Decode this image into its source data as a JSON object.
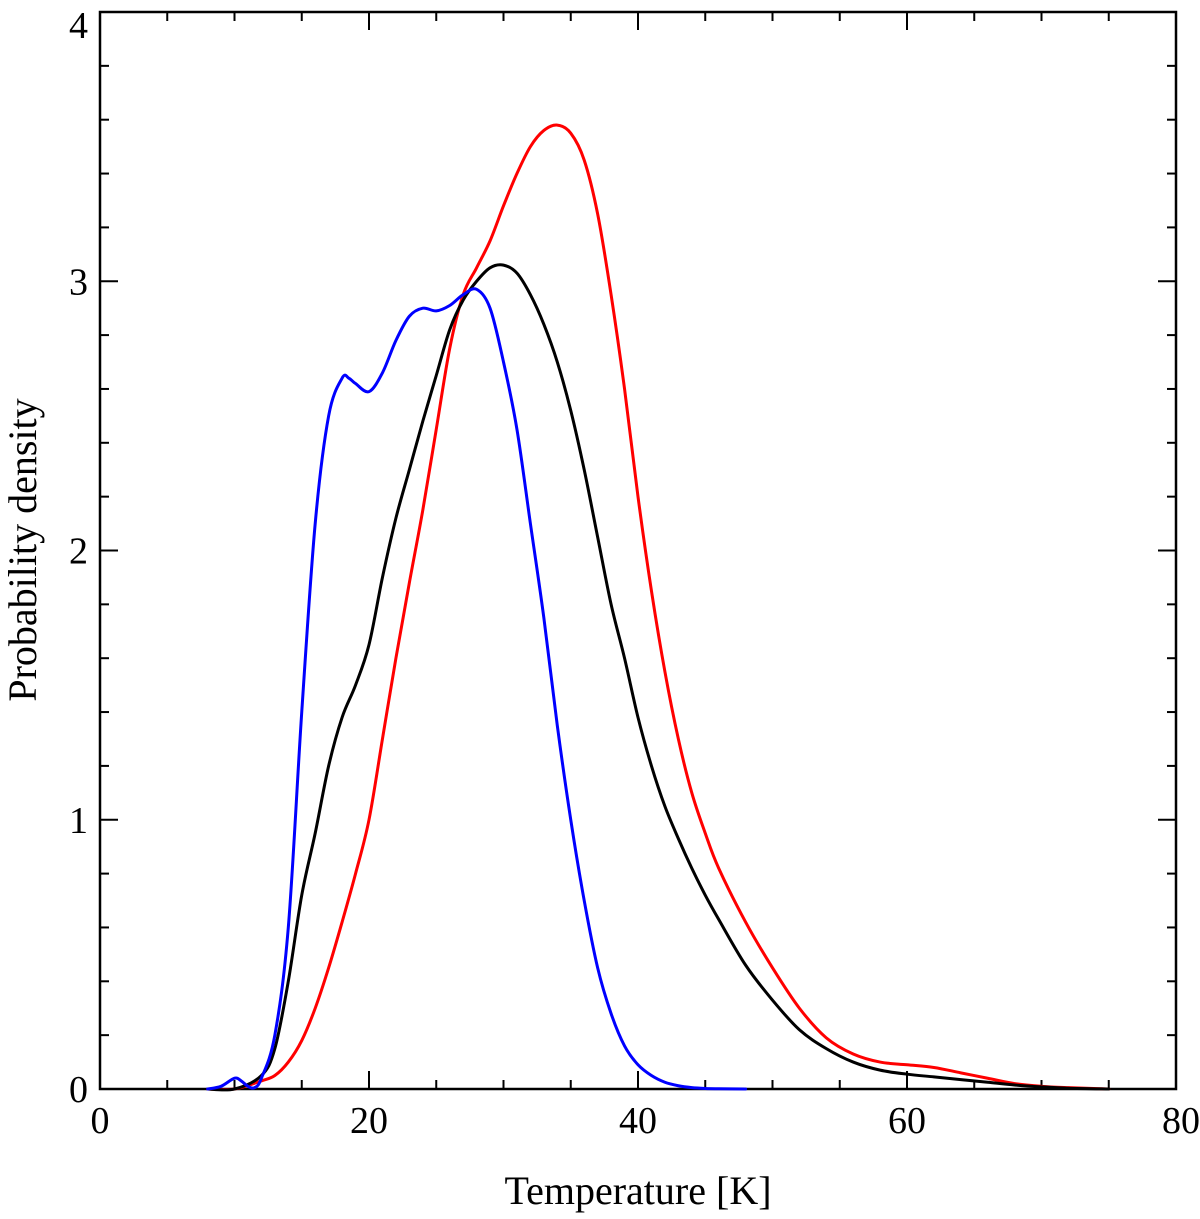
{
  "chart_data": {
    "type": "line",
    "title": "",
    "xlabel": "Temperature [K]",
    "ylabel": "Probability density",
    "xlim": [
      0,
      80
    ],
    "ylim": [
      0,
      4
    ],
    "x_major_ticks": [
      0,
      20,
      40,
      60,
      80
    ],
    "x_minor_step": 5,
    "y_major_ticks": [
      0,
      1,
      2,
      3,
      4
    ],
    "y_minor_step": 0.2,
    "grid": false,
    "legend": "none",
    "series": [
      {
        "name": "red curve",
        "color": "#ff0000",
        "x": [
          8,
          10,
          12,
          13,
          14,
          15,
          16,
          17,
          18,
          19,
          20,
          21,
          22,
          23,
          24,
          25,
          26,
          27,
          28,
          29,
          30,
          31,
          32,
          33,
          34,
          35,
          36,
          37,
          38,
          39,
          40,
          41,
          42,
          43,
          44,
          45,
          46,
          48,
          50,
          52,
          54,
          56,
          58,
          60,
          62,
          64,
          66,
          68,
          70,
          72,
          75
        ],
        "y": [
          0,
          0,
          0.03,
          0.05,
          0.1,
          0.18,
          0.3,
          0.45,
          0.62,
          0.8,
          1.0,
          1.3,
          1.6,
          1.88,
          2.15,
          2.45,
          2.75,
          2.95,
          3.05,
          3.15,
          3.28,
          3.4,
          3.5,
          3.56,
          3.58,
          3.55,
          3.45,
          3.25,
          2.95,
          2.6,
          2.2,
          1.85,
          1.55,
          1.3,
          1.1,
          0.95,
          0.82,
          0.62,
          0.45,
          0.3,
          0.19,
          0.13,
          0.1,
          0.09,
          0.08,
          0.06,
          0.04,
          0.02,
          0.01,
          0.005,
          0
        ]
      },
      {
        "name": "black curve",
        "color": "#000000",
        "x": [
          8,
          10,
          12,
          13,
          14,
          15,
          16,
          17,
          18,
          19,
          20,
          21,
          22,
          23,
          24,
          25,
          26,
          27,
          28,
          29,
          30,
          31,
          32,
          33,
          34,
          35,
          36,
          37,
          38,
          39,
          40,
          41,
          42,
          43,
          44,
          45,
          46,
          48,
          50,
          52,
          54,
          56,
          58,
          60,
          62,
          64,
          66,
          68,
          70,
          72,
          75
        ],
        "y": [
          0,
          0,
          0.05,
          0.15,
          0.4,
          0.72,
          0.95,
          1.2,
          1.38,
          1.5,
          1.65,
          1.9,
          2.12,
          2.3,
          2.48,
          2.65,
          2.82,
          2.93,
          3.0,
          3.05,
          3.06,
          3.03,
          2.95,
          2.84,
          2.7,
          2.52,
          2.3,
          2.05,
          1.8,
          1.6,
          1.38,
          1.2,
          1.05,
          0.93,
          0.82,
          0.72,
          0.63,
          0.46,
          0.33,
          0.22,
          0.15,
          0.1,
          0.07,
          0.055,
          0.045,
          0.035,
          0.025,
          0.015,
          0.008,
          0.003,
          0
        ]
      },
      {
        "name": "blue curve",
        "color": "#0000ff",
        "x": [
          8,
          9,
          10,
          10.5,
          11,
          11.5,
          12,
          13,
          14,
          15,
          16,
          17,
          18,
          18.5,
          19,
          20,
          21,
          22,
          23,
          24,
          25,
          26,
          27,
          28,
          29,
          30,
          31,
          32,
          33,
          34,
          35,
          36,
          37,
          38,
          39,
          40,
          41,
          42,
          43,
          44,
          45,
          46,
          48
        ],
        "y": [
          0,
          0.01,
          0.04,
          0.03,
          0.01,
          0.005,
          0.04,
          0.2,
          0.6,
          1.4,
          2.1,
          2.5,
          2.64,
          2.64,
          2.62,
          2.59,
          2.66,
          2.78,
          2.87,
          2.9,
          2.89,
          2.91,
          2.95,
          2.97,
          2.9,
          2.7,
          2.45,
          2.1,
          1.75,
          1.35,
          1.0,
          0.7,
          0.45,
          0.28,
          0.16,
          0.09,
          0.05,
          0.025,
          0.012,
          0.005,
          0.002,
          0.001,
          0
        ]
      }
    ]
  }
}
